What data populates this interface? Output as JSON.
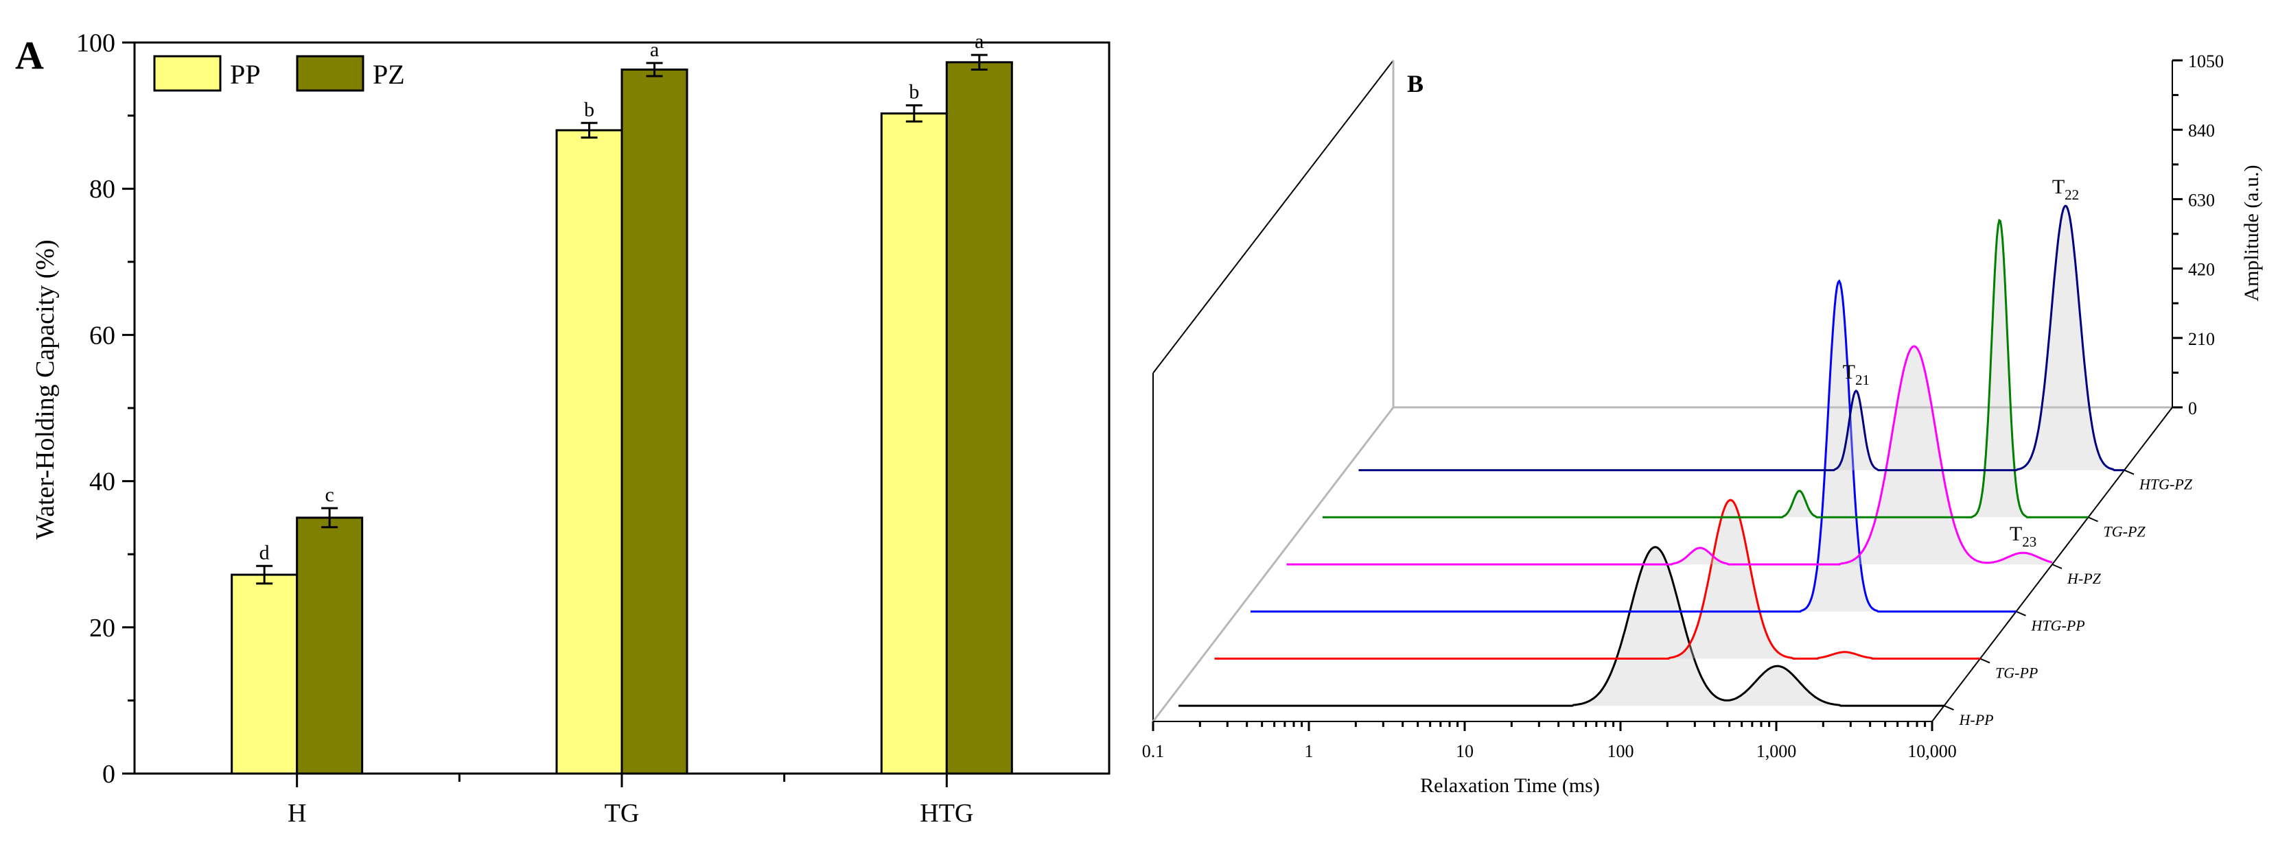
{
  "chart_data": [
    {
      "type": "bar",
      "panel_label": "A",
      "ylabel": "Water-Holding Capacity (%)",
      "ylim": [
        0,
        100
      ],
      "yticks": [
        "0",
        "20",
        "40",
        "60",
        "80",
        "100"
      ],
      "categories": [
        "H",
        "TG",
        "HTG"
      ],
      "series": [
        {
          "name": "PP",
          "color": "#ffff80",
          "values": [
            27.2,
            88.0,
            90.3
          ],
          "errors": [
            1.2,
            1.0,
            1.1
          ],
          "letters": [
            "d",
            "b",
            "b"
          ]
        },
        {
          "name": "PZ",
          "color": "#808000",
          "values": [
            35.0,
            96.3,
            97.3
          ],
          "errors": [
            1.3,
            0.9,
            1.0
          ],
          "letters": [
            "c",
            "a",
            "a"
          ]
        }
      ],
      "legend_position": "top-left",
      "grid": false
    },
    {
      "type": "line",
      "panel_label": "B",
      "xlabel": "Relaxation Time (ms)",
      "x_scale": "log",
      "xticks": [
        "0.1",
        "1",
        "10",
        "100",
        "1,000",
        "10,000"
      ],
      "ylabel": "Amplitude (a.u.)",
      "yticks": [
        "0",
        "210",
        "420",
        "630",
        "840",
        "1050"
      ],
      "peak_labels": [
        {
          "main": "T",
          "sub": "21",
          "series": "HTG-PZ",
          "x": 190
        },
        {
          "main": "T",
          "sub": "22",
          "series": "HTG-PZ",
          "x": 4200
        },
        {
          "main": "T",
          "sub": "23",
          "series": "H-PZ",
          "x": 6500
        }
      ],
      "series": [
        {
          "name": "H-PP",
          "color": "#000000",
          "peaks": [
            {
              "x": 140,
              "amp": 480,
              "w": 0.16
            },
            {
              "x": 850,
              "amp": 120,
              "w": 0.14
            }
          ]
        },
        {
          "name": "TG-PP",
          "color": "#ff0000",
          "peaks": [
            {
              "x": 250,
              "amp": 480,
              "w": 0.12
            },
            {
              "x": 1350,
              "amp": 20,
              "w": 0.08
            }
          ]
        },
        {
          "name": "HTG-PP",
          "color": "#0000ff",
          "peaks": [
            {
              "x": 730,
              "amp": 1000,
              "w": 0.07
            }
          ]
        },
        {
          "name": "H-PZ",
          "color": "#ff00ff",
          "peaks": [
            {
              "x": 55,
              "amp": 50,
              "w": 0.07
            },
            {
              "x": 1300,
              "amp": 660,
              "w": 0.14
            },
            {
              "x": 6500,
              "amp": 35,
              "w": 0.1
            }
          ]
        },
        {
          "name": "TG-PZ",
          "color": "#008000",
          "peaks": [
            {
              "x": 140,
              "amp": 80,
              "w": 0.04
            },
            {
              "x": 2700,
              "amp": 900,
              "w": 0.05
            }
          ]
        },
        {
          "name": "HTG-PZ",
          "color": "#000080",
          "peaks": [
            {
              "x": 190,
              "amp": 240,
              "w": 0.045
            },
            {
              "x": 4200,
              "amp": 800,
              "w": 0.09
            }
          ]
        }
      ]
    }
  ]
}
